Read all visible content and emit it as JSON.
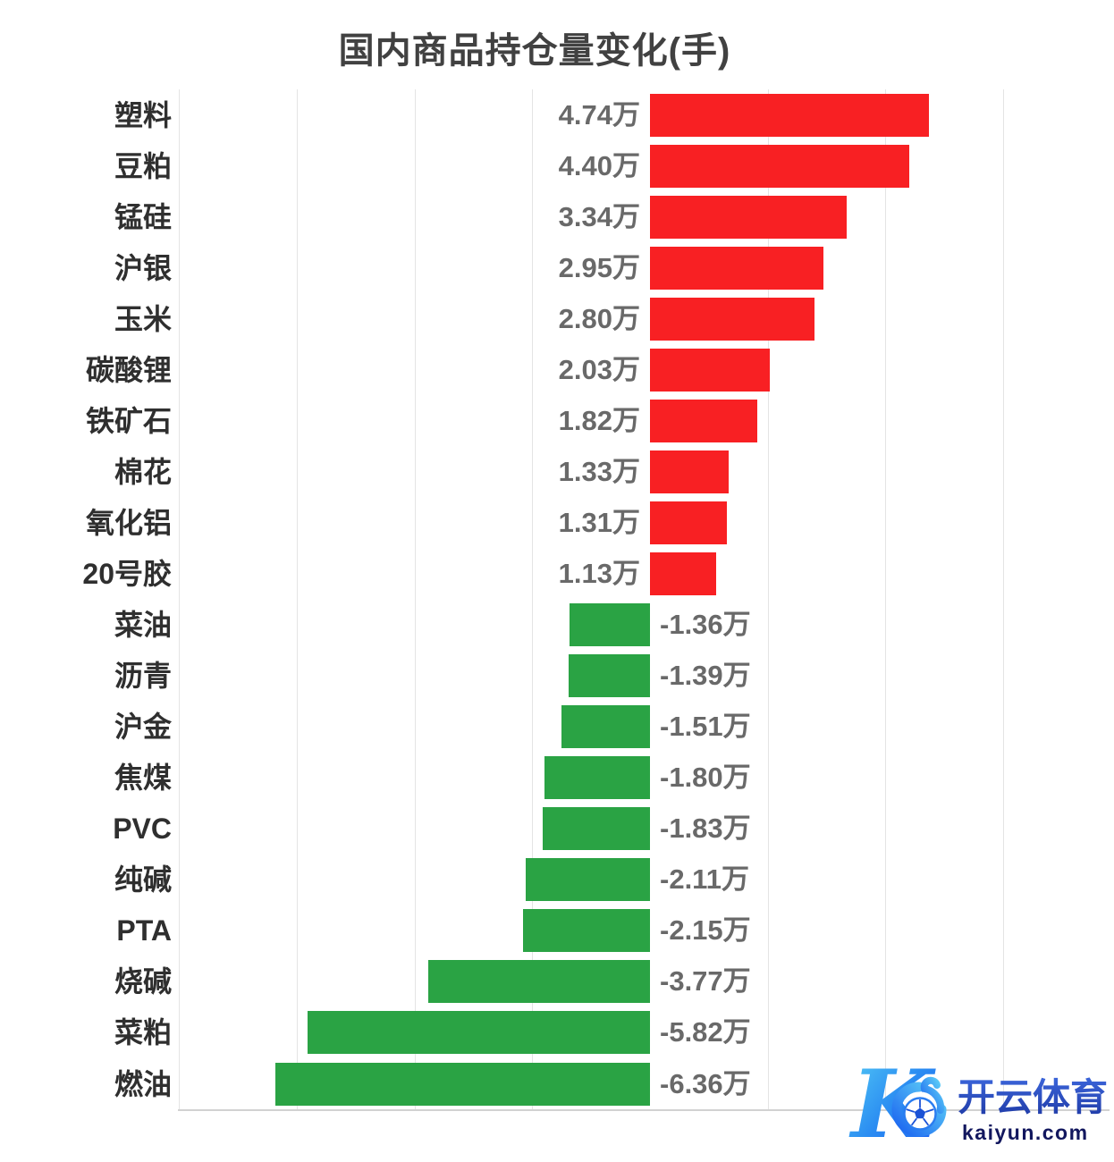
{
  "chart_data": {
    "type": "bar",
    "orientation": "horizontal",
    "title": "国内商品持仓量变化(手)",
    "unit": "万手",
    "categories": [
      "塑料",
      "豆粕",
      "锰硅",
      "沪银",
      "玉米",
      "碳酸锂",
      "铁矿石",
      "棉花",
      "氧化铝",
      "20号胶",
      "菜油",
      "沥青",
      "沪金",
      "焦煤",
      "PVC",
      "纯碱",
      "PTA",
      "烧碱",
      "菜粕",
      "燃油"
    ],
    "values": [
      4.74,
      4.4,
      3.34,
      2.95,
      2.8,
      2.03,
      1.82,
      1.33,
      1.31,
      1.13,
      -1.36,
      -1.39,
      -1.51,
      -1.8,
      -1.83,
      -2.11,
      -2.15,
      -3.77,
      -5.82,
      -6.36
    ],
    "value_labels": [
      "4.74万",
      "4.40万",
      "3.34万",
      "2.95万",
      "2.80万",
      "2.03万",
      "1.82万",
      "1.33万",
      "1.31万",
      "1.13万",
      "-1.36万",
      "-1.39万",
      "-1.51万",
      "-1.80万",
      "-1.83万",
      "-2.11万",
      "-2.15万",
      "-3.77万",
      "-5.82万",
      "-6.36万"
    ],
    "positive_color": "#f82023",
    "negative_color": "#2aa344",
    "xlim": [
      -8,
      7.9
    ],
    "gridline_interval": 2,
    "grid_values": [
      -8,
      -6,
      -4,
      -2,
      2,
      4,
      6
    ],
    "grid": "on",
    "axis_tick_labels_visible": false,
    "legend": "none"
  },
  "watermark": {
    "logo_letter": "K",
    "brand": "开云体育",
    "domain": "kaiyun.com",
    "logo_color_light": "#55cdf5",
    "logo_color_dark": "#1b74f0",
    "brand_color_top": "#3c66db",
    "brand_color_bottom": "#1f3aa6",
    "domain_color": "#12175e"
  }
}
